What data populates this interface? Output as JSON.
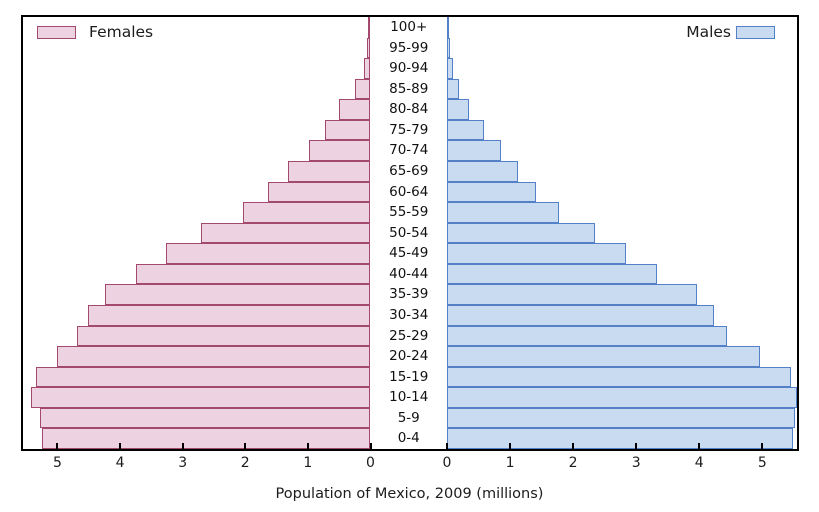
{
  "chart_data": {
    "type": "bar",
    "variant": "population-pyramid",
    "title": "Population of Mexico, 2009 (millions)",
    "age_groups_top_to_bottom": [
      "100+",
      "95-99",
      "90-94",
      "85-89",
      "80-84",
      "75-79",
      "70-74",
      "65-69",
      "60-64",
      "55-59",
      "50-54",
      "45-49",
      "40-44",
      "35-39",
      "30-34",
      "25-29",
      "20-24",
      "15-19",
      "10-14",
      "5-9",
      "0-4"
    ],
    "series": [
      {
        "name": "Females",
        "side": "left",
        "fill_color": "#edd3e1",
        "edge_color": "#a3496e",
        "values_millions": [
          0.02,
          0.05,
          0.11,
          0.24,
          0.5,
          0.72,
          0.98,
          1.31,
          1.63,
          2.03,
          2.7,
          3.26,
          3.75,
          4.24,
          4.51,
          4.69,
          5.01,
          5.34,
          5.43,
          5.28,
          5.24
        ]
      },
      {
        "name": "Males",
        "side": "right",
        "fill_color": "#c9dbf1",
        "edge_color": "#5380c6",
        "values_millions": [
          0.02,
          0.04,
          0.09,
          0.19,
          0.35,
          0.58,
          0.85,
          1.13,
          1.41,
          1.78,
          2.34,
          2.84,
          3.33,
          3.96,
          4.23,
          4.44,
          4.96,
          5.45,
          5.55,
          5.52,
          5.48
        ]
      }
    ],
    "x_axis": {
      "xlim": [
        0,
        5.55
      ],
      "tick_values": [
        0,
        1,
        2,
        3,
        4,
        5
      ],
      "tick_labels_left_side": [
        "5",
        "4",
        "3",
        "2",
        "1",
        "0"
      ],
      "tick_labels_right_side": [
        "0",
        "1",
        "2",
        "3",
        "4",
        "5"
      ]
    },
    "legend": {
      "left_label": "Females",
      "right_label": "Males"
    },
    "grid": false,
    "colors": {
      "background": "#ffffff",
      "spine": "#000000",
      "text": "#1c1c1c"
    }
  }
}
